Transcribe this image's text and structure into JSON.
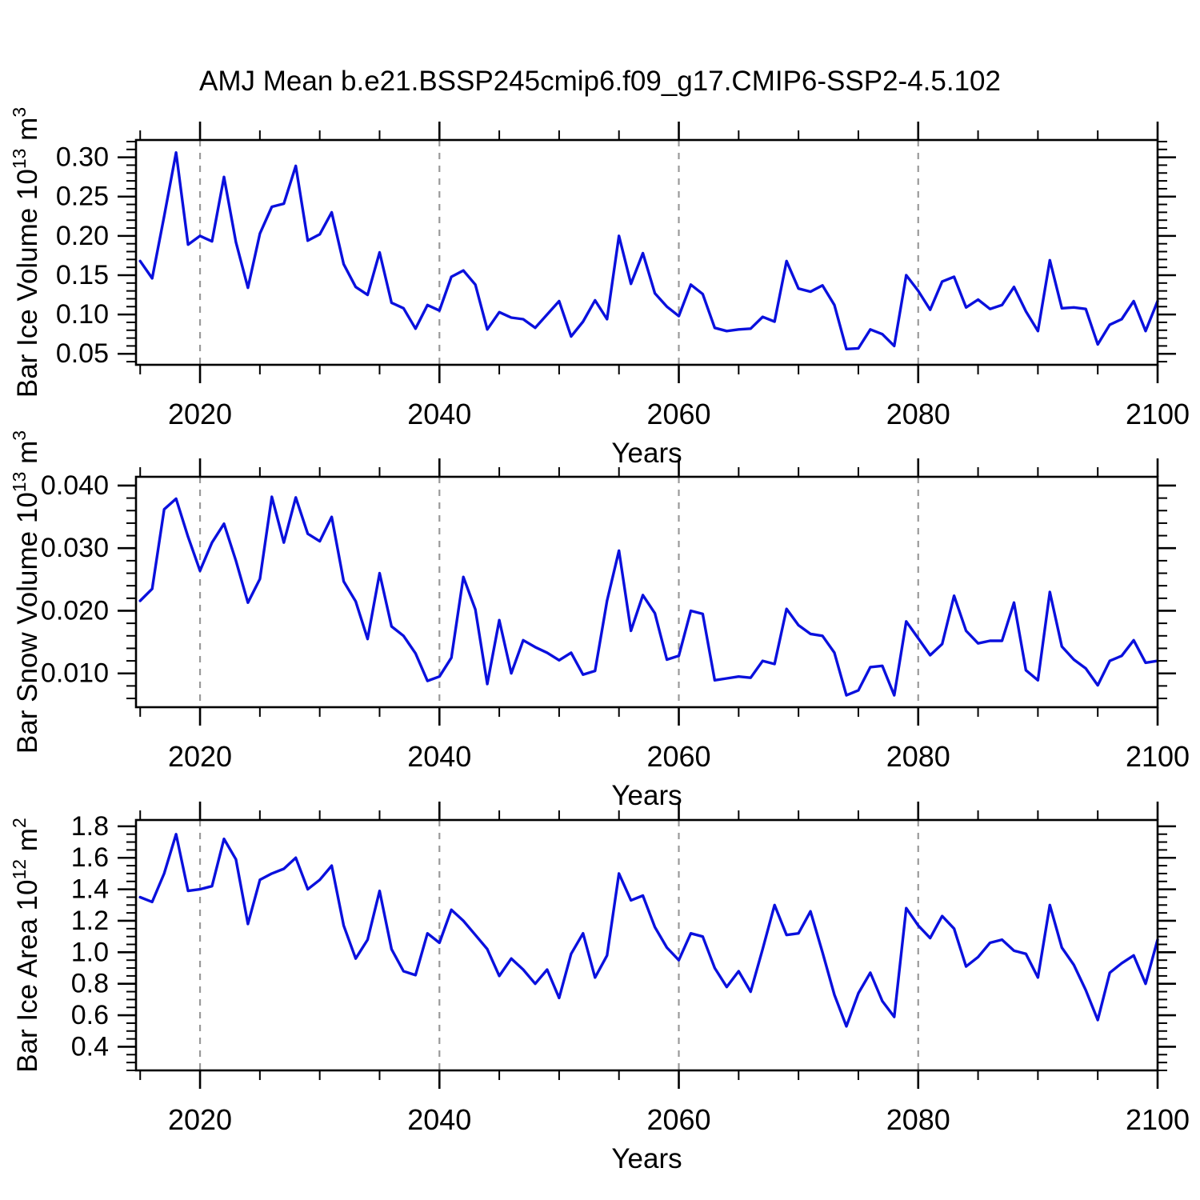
{
  "title": "AMJ Mean b.e21.BSSP245cmip6.f09_g17.CMIP6-SSP2-4.5.102",
  "chart_data": {
    "type": "line",
    "line_color": "#0a10dd",
    "background": "#ffffff",
    "x_axis": {
      "label": "Years",
      "years_start": 2015,
      "years_end": 2100,
      "major_ticks": [
        2020,
        2040,
        2060,
        2080,
        2100
      ],
      "minor_step": 5,
      "dashed_gridlines": [
        2020,
        2040,
        2060,
        2080
      ],
      "range": [
        2014.65,
        2100
      ],
      "gridline_color": "#999999"
    },
    "panels": [
      {
        "name": "bar-ice-volume",
        "ylabel": "Bar Ice Volume 10¹³ m³",
        "ylabel_segments": [
          [
            "Bar Ice Volume 10",
            false
          ],
          [
            "13",
            true
          ],
          [
            " m",
            false
          ],
          [
            "3",
            true
          ]
        ],
        "xlabel": "Years",
        "y_major_ticks": [
          0.05,
          0.1,
          0.15,
          0.2,
          0.25,
          0.3
        ],
        "y_tick_decimals": 2,
        "y_minor_step": 0.01,
        "y_range": [
          0.036,
          0.322
        ],
        "values": [
          0.168,
          0.146,
          0.225,
          0.306,
          0.189,
          0.2,
          0.193,
          0.275,
          0.192,
          0.134,
          0.203,
          0.237,
          0.241,
          0.289,
          0.194,
          0.202,
          0.23,
          0.164,
          0.135,
          0.125,
          0.179,
          0.115,
          0.108,
          0.082,
          0.112,
          0.105,
          0.148,
          0.156,
          0.138,
          0.081,
          0.103,
          0.096,
          0.094,
          0.083,
          0.1,
          0.117,
          0.072,
          0.091,
          0.118,
          0.094,
          0.2,
          0.139,
          0.178,
          0.127,
          0.11,
          0.098,
          0.138,
          0.126,
          0.083,
          0.079,
          0.081,
          0.082,
          0.097,
          0.091,
          0.168,
          0.133,
          0.129,
          0.137,
          0.112,
          0.056,
          0.057,
          0.081,
          0.075,
          0.06,
          0.15,
          0.13,
          0.106,
          0.142,
          0.148,
          0.109,
          0.119,
          0.107,
          0.112,
          0.135,
          0.104,
          0.079,
          0.169,
          0.108,
          0.109,
          0.107,
          0.062,
          0.087,
          0.094,
          0.117,
          0.079,
          0.117
        ]
      },
      {
        "name": "bar-snow-volume",
        "ylabel": "Bar Snow Volume 10¹³ m³",
        "ylabel_segments": [
          [
            "Bar Snow Volume 10",
            false
          ],
          [
            "13",
            true
          ],
          [
            " m",
            false
          ],
          [
            "3",
            true
          ]
        ],
        "xlabel": "Years",
        "y_major_ticks": [
          0.01,
          0.02,
          0.03,
          0.04
        ],
        "y_tick_decimals": 3,
        "y_minor_step": 0.002,
        "y_range": [
          0.0046,
          0.0414
        ],
        "values": [
          0.0216,
          0.0235,
          0.0362,
          0.0379,
          0.0318,
          0.0264,
          0.0309,
          0.0339,
          0.028,
          0.0213,
          0.0251,
          0.0382,
          0.0309,
          0.0381,
          0.0323,
          0.0311,
          0.035,
          0.0247,
          0.0215,
          0.0155,
          0.026,
          0.0175,
          0.016,
          0.0132,
          0.0088,
          0.0095,
          0.0125,
          0.0254,
          0.0202,
          0.0083,
          0.0185,
          0.01,
          0.0153,
          0.0142,
          0.0133,
          0.0121,
          0.0133,
          0.0098,
          0.0104,
          0.0216,
          0.0296,
          0.0168,
          0.0225,
          0.0196,
          0.0122,
          0.0128,
          0.02,
          0.0195,
          0.0089,
          0.0092,
          0.0095,
          0.0093,
          0.012,
          0.0115,
          0.0203,
          0.0177,
          0.0163,
          0.016,
          0.0133,
          0.0065,
          0.0073,
          0.011,
          0.0112,
          0.0065,
          0.0183,
          0.0156,
          0.0129,
          0.0147,
          0.0224,
          0.0168,
          0.0148,
          0.0152,
          0.0152,
          0.0213,
          0.0105,
          0.0089,
          0.023,
          0.0143,
          0.0122,
          0.0108,
          0.0081,
          0.012,
          0.0128,
          0.0153,
          0.0117,
          0.012
        ]
      },
      {
        "name": "bar-ice-area",
        "ylabel": "Bar Ice Area 10¹² m²",
        "ylabel_segments": [
          [
            "Bar Ice Area 10",
            false
          ],
          [
            "12",
            true
          ],
          [
            " m",
            false
          ],
          [
            "2",
            true
          ]
        ],
        "xlabel": "Years",
        "y_major_ticks": [
          0.4,
          0.6,
          0.8,
          1.0,
          1.2,
          1.4,
          1.6,
          1.8
        ],
        "y_tick_decimals": 1,
        "y_minor_step": 0.05,
        "y_range": [
          0.25,
          1.84
        ],
        "values": [
          1.35,
          1.32,
          1.5,
          1.75,
          1.39,
          1.4,
          1.42,
          1.72,
          1.59,
          1.18,
          1.46,
          1.5,
          1.53,
          1.6,
          1.4,
          1.46,
          1.55,
          1.17,
          0.96,
          1.08,
          1.39,
          1.02,
          0.88,
          0.855,
          1.12,
          1.06,
          1.27,
          1.2,
          1.11,
          1.02,
          0.85,
          0.96,
          0.89,
          0.8,
          0.89,
          0.71,
          0.99,
          1.12,
          0.84,
          0.98,
          1.5,
          1.33,
          1.36,
          1.16,
          1.03,
          0.95,
          1.12,
          1.1,
          0.9,
          0.78,
          0.88,
          0.75,
          1.02,
          1.3,
          1.11,
          1.12,
          1.26,
          1.0,
          0.73,
          0.53,
          0.74,
          0.87,
          0.69,
          0.59,
          1.28,
          1.17,
          1.09,
          1.23,
          1.15,
          0.91,
          0.97,
          1.06,
          1.08,
          1.01,
          0.99,
          0.84,
          1.3,
          1.03,
          0.92,
          0.76,
          0.57,
          0.87,
          0.93,
          0.98,
          0.8,
          1.08
        ]
      }
    ]
  }
}
